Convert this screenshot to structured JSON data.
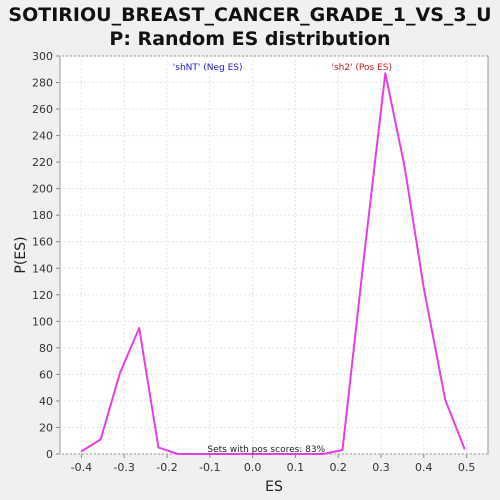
{
  "chart_data": {
    "type": "line",
    "title_lines": [
      "SOTIRIOU_BREAST_CANCER_GRADE_1_VS_3_U",
      "P: Random ES distribution"
    ],
    "xlabel": "ES",
    "ylabel": "P(ES)",
    "xlim": [
      -0.45,
      0.55
    ],
    "ylim": [
      0,
      300
    ],
    "xticks": [
      -0.4,
      -0.3,
      -0.2,
      -0.1,
      0.0,
      0.1,
      0.2,
      0.3,
      0.4,
      0.5
    ],
    "xtick_labels": [
      "-0.4",
      "-0.3",
      "-0.2",
      "-0.1",
      "0.0",
      "0.1",
      "0.2",
      "0.3",
      "0.4",
      "0.5"
    ],
    "yticks": [
      0,
      20,
      40,
      60,
      80,
      100,
      120,
      140,
      160,
      180,
      200,
      220,
      240,
      260,
      280,
      300
    ],
    "grid": true,
    "series": [
      {
        "color": "#e83ce8",
        "x": [
          -0.4,
          -0.355,
          -0.31,
          -0.265,
          -0.22,
          -0.175,
          -0.13,
          -0.085,
          -0.04,
          0.005,
          0.05,
          0.095,
          0.13,
          0.165,
          0.21,
          0.26,
          0.31,
          0.355,
          0.4,
          0.45,
          0.495
        ],
        "y": [
          2,
          11,
          61,
          95,
          5,
          0,
          0,
          0,
          0,
          0,
          0,
          0,
          0,
          0,
          3,
          148,
          287,
          217,
          125,
          41,
          4
        ]
      }
    ],
    "legend": [
      {
        "label": "'shNT' (Neg ES)",
        "color": "#2020cc"
      },
      {
        "label": "'sh2' (Pos ES)",
        "color": "#cc2020"
      }
    ],
    "annotation": "Sets with pos scores: 83%"
  }
}
